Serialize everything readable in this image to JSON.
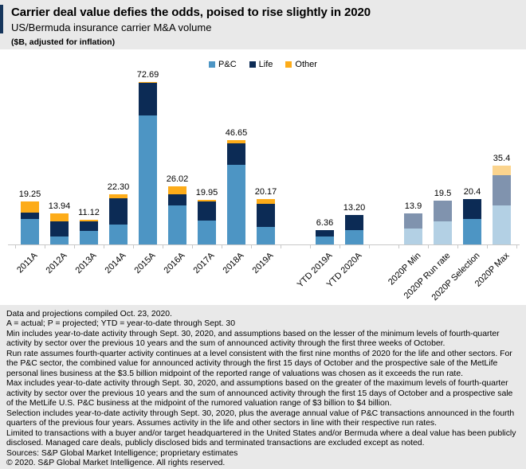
{
  "header": {
    "title": "Carrier deal value defies the odds, poised to rise slightly in 2020",
    "subtitle": "US/Bermuda insurance carrier M&A volume",
    "unit_note": "($B, adjusted for inflation)"
  },
  "colors": {
    "pc": "#4d95c4",
    "life": "#0c2b55",
    "other": "#fdac19",
    "pc_projected": "#b3d0e4",
    "life_projected": "#8093ae",
    "other_projected": "#fbd48e",
    "accent_bar": "#16365c",
    "page_background": "#e9e9e9",
    "chart_background": "#ffffff",
    "axis": "#c8c8c8"
  },
  "chart_data": {
    "type": "bar",
    "stacked": true,
    "title": "US/Bermuda insurance carrier M&A volume",
    "ylabel": "$B, adjusted for inflation",
    "ylim": [
      0,
      80
    ],
    "grid": false,
    "legend_position": "top-center",
    "legend": [
      {
        "label": "P&C",
        "color": "pc"
      },
      {
        "label": "Life",
        "color": "life"
      },
      {
        "label": "Other",
        "color": "other"
      }
    ],
    "bars": [
      {
        "label": "2011A",
        "slot": 0,
        "total": "19.25",
        "segments": [
          {
            "series": "P&C",
            "value": 11.3,
            "color": "pc"
          },
          {
            "series": "Life",
            "value": 2.9,
            "color": "life"
          },
          {
            "series": "Other",
            "value": 5.05,
            "color": "other"
          }
        ]
      },
      {
        "label": "2012A",
        "slot": 1,
        "total": "13.94",
        "segments": [
          {
            "series": "P&C",
            "value": 3.7,
            "color": "pc"
          },
          {
            "series": "Life",
            "value": 6.6,
            "color": "life"
          },
          {
            "series": "Other",
            "value": 3.64,
            "color": "other"
          }
        ]
      },
      {
        "label": "2013A",
        "slot": 2,
        "total": "11.12",
        "segments": [
          {
            "series": "P&C",
            "value": 6.1,
            "color": "pc"
          },
          {
            "series": "Life",
            "value": 4.2,
            "color": "life"
          },
          {
            "series": "Other",
            "value": 0.82,
            "color": "other"
          }
        ]
      },
      {
        "label": "2014A",
        "slot": 3,
        "total": "22.30",
        "segments": [
          {
            "series": "P&C",
            "value": 9.0,
            "color": "pc"
          },
          {
            "series": "Life",
            "value": 11.5,
            "color": "life"
          },
          {
            "series": "Other",
            "value": 1.8,
            "color": "other"
          }
        ]
      },
      {
        "label": "2015A",
        "slot": 4,
        "total": "72.69",
        "segments": [
          {
            "series": "P&C",
            "value": 57.7,
            "color": "pc"
          },
          {
            "series": "Life",
            "value": 14.6,
            "color": "life"
          },
          {
            "series": "Other",
            "value": 0.39,
            "color": "other"
          }
        ]
      },
      {
        "label": "2016A",
        "slot": 5,
        "total": "26.02",
        "segments": [
          {
            "series": "P&C",
            "value": 17.5,
            "color": "pc"
          },
          {
            "series": "Life",
            "value": 4.9,
            "color": "life"
          },
          {
            "series": "Other",
            "value": 3.62,
            "color": "other"
          }
        ]
      },
      {
        "label": "2017A",
        "slot": 6,
        "total": "19.95",
        "segments": [
          {
            "series": "P&C",
            "value": 10.8,
            "color": "pc"
          },
          {
            "series": "Life",
            "value": 8.3,
            "color": "life"
          },
          {
            "series": "Other",
            "value": 0.85,
            "color": "other"
          }
        ]
      },
      {
        "label": "2018A",
        "slot": 7,
        "total": "46.65",
        "segments": [
          {
            "series": "P&C",
            "value": 35.7,
            "color": "pc"
          },
          {
            "series": "Life",
            "value": 9.5,
            "color": "life"
          },
          {
            "series": "Other",
            "value": 1.45,
            "color": "other"
          }
        ]
      },
      {
        "label": "2019A",
        "slot": 8,
        "total": "20.17",
        "segments": [
          {
            "series": "P&C",
            "value": 7.9,
            "color": "pc"
          },
          {
            "series": "Life",
            "value": 10.2,
            "color": "life"
          },
          {
            "series": "Other",
            "value": 2.07,
            "color": "other"
          }
        ]
      },
      {
        "label": "YTD 2019A",
        "slot": 10,
        "total": "6.36",
        "segments": [
          {
            "series": "P&C",
            "value": 3.66,
            "color": "pc"
          },
          {
            "series": "Life",
            "value": 2.7,
            "color": "life"
          }
        ]
      },
      {
        "label": "YTD 2020A",
        "slot": 11,
        "total": "13.20",
        "segments": [
          {
            "series": "P&C",
            "value": 6.4,
            "color": "pc"
          },
          {
            "series": "Life",
            "value": 6.8,
            "color": "life"
          }
        ]
      },
      {
        "label": "2020P Min",
        "slot": 13,
        "total": "13.9",
        "segments": [
          {
            "series": "P&C",
            "value": 7.2,
            "color": "pc_projected"
          },
          {
            "series": "Life",
            "value": 6.7,
            "color": "life_projected"
          }
        ]
      },
      {
        "label": "2020P Run rate",
        "slot": 14,
        "total": "19.5",
        "segments": [
          {
            "series": "P&C",
            "value": 10.3,
            "color": "pc_projected"
          },
          {
            "series": "Life",
            "value": 9.2,
            "color": "life_projected"
          }
        ]
      },
      {
        "label": "2020P Selection",
        "slot": 15,
        "total": "20.4",
        "segments": [
          {
            "series": "P&C",
            "value": 11.5,
            "color": "pc"
          },
          {
            "series": "Life",
            "value": 8.9,
            "color": "life"
          }
        ]
      },
      {
        "label": "2020P Max",
        "slot": 16,
        "total": "35.4",
        "segments": [
          {
            "series": "P&C",
            "value": 17.3,
            "color": "pc_projected"
          },
          {
            "series": "Life",
            "value": 13.7,
            "color": "life_projected"
          },
          {
            "series": "Other",
            "value": 4.4,
            "color": "other_projected"
          }
        ]
      }
    ]
  },
  "footnotes": [
    "Data and projections compiled Oct. 23, 2020.",
    "A = actual; P = projected; YTD = year-to-date through Sept. 30",
    "Min includes year-to-date activity through Sept. 30, 2020, and assumptions based on the lesser of the minimum levels of fourth-quarter activity by sector over the previous 10 years and the sum of announced activity through the first three weeks of October.",
    "Run rate assumes fourth-quarter activity continues at a level consistent with the first nine months of 2020 for the life and other sectors. For the P&C sector, the combined value for announced activity through the first 15 days of October and the prospective sale of the MetLife personal lines business at the $3.5 billion midpoint of the reported range of valuations was chosen as it exceeds the run rate.",
    "Max includes year-to-date activity through Sept. 30, 2020, and assumptions based on the greater of the maximum levels of fourth-quarter activity by sector over the previous 10 years and the sum of announced activity through the first 15 days of October and a prospective sale of the MetLife U.S. P&C business at the midpoint of the rumored valuation range of $3 billion to $4 billion.",
    "Selection includes year-to-date activity through Sept. 30, 2020, plus the average annual value of P&C transactions announced in the fourth quarters of the previous four years. Assumes activity in the life and other sectors in line with their respective run rates.",
    "Limited to transactions with a buyer and/or target headquartered in the United States and/or Bermuda where a deal value has been publicly disclosed. Managed care deals, publicly disclosed bids and terminated transactions are excluded except as noted.",
    "Sources: S&P Global Market Intelligence; proprietary estimates",
    "© 2020. S&P Global Market Intelligence. All rights reserved."
  ]
}
